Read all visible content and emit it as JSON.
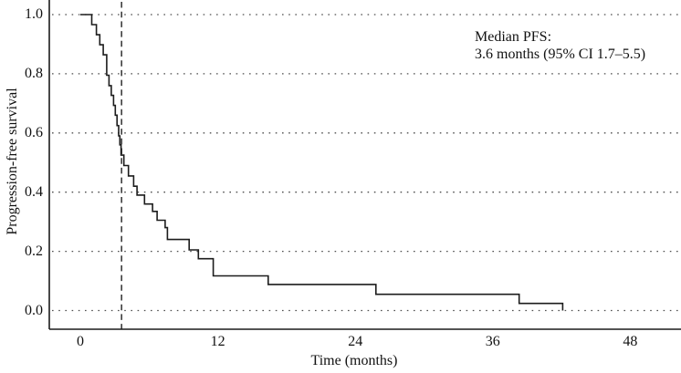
{
  "chart_data": {
    "type": "line",
    "chart_style": "kaplan-meier step curve",
    "title": "",
    "xlabel": "Time (months)",
    "ylabel": "Progression-free survival",
    "xticks": [
      0,
      12,
      24,
      36,
      48
    ],
    "xtick_labels": [
      "0",
      "12",
      "24",
      "36",
      "48"
    ],
    "yticks": [
      0.0,
      0.2,
      0.4,
      0.6,
      0.8,
      1.0
    ],
    "ytick_labels": [
      "0.0",
      "0.2",
      "0.4",
      "0.6",
      "0.8",
      "1.0"
    ],
    "xlim": [
      -2.7,
      52.4
    ],
    "ylim": [
      -0.06,
      1.05
    ],
    "grid": "horizontal dotted lines at each y tick",
    "legend": "none",
    "median_line_x": 3.6,
    "median_pfs_months": 3.6,
    "ci95_months": [
      1.7,
      5.5
    ],
    "annotation": {
      "line1": "Median PFS:",
      "line2": "3.6 months (95% CI 1.7–5.5)"
    },
    "colors": {
      "curve": "#1c1c1c",
      "axis": "#1a1a1a",
      "grid_dots": "#4f4f4f",
      "median_dash": "#3c3c3c",
      "text": "#111111",
      "background": "#ffffff"
    },
    "series": [
      {
        "name": "Progression-free survival",
        "steps_time_survival": [
          [
            0.0,
            1.0
          ],
          [
            1.0,
            0.966
          ],
          [
            1.4,
            0.932
          ],
          [
            1.7,
            0.898
          ],
          [
            2.0,
            0.864
          ],
          [
            2.3,
            0.795
          ],
          [
            2.5,
            0.76
          ],
          [
            2.7,
            0.727
          ],
          [
            2.9,
            0.693
          ],
          [
            3.05,
            0.66
          ],
          [
            3.2,
            0.625
          ],
          [
            3.35,
            0.59
          ],
          [
            3.45,
            0.56
          ],
          [
            3.55,
            0.525
          ],
          [
            3.8,
            0.49
          ],
          [
            4.2,
            0.455
          ],
          [
            4.65,
            0.42
          ],
          [
            4.95,
            0.39
          ],
          [
            5.6,
            0.36
          ],
          [
            6.3,
            0.335
          ],
          [
            6.7,
            0.305
          ],
          [
            7.4,
            0.28
          ],
          [
            7.6,
            0.24
          ],
          [
            9.5,
            0.205
          ],
          [
            10.3,
            0.175
          ],
          [
            11.6,
            0.117
          ],
          [
            16.4,
            0.088
          ],
          [
            25.8,
            0.055
          ],
          [
            38.3,
            0.024
          ],
          [
            42.1,
            0.0
          ]
        ]
      }
    ]
  }
}
